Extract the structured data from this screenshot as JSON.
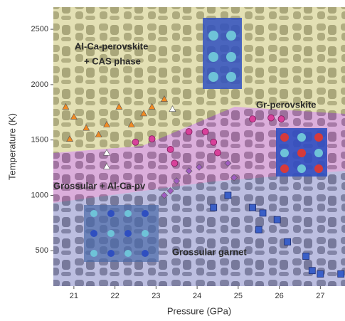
{
  "chart_data": {
    "type": "scatter",
    "x_label": "Pressure (GPa)",
    "y_label": "Temperature (K)",
    "xlim": [
      20.5,
      27.6
    ],
    "ylim": [
      180,
      2700
    ],
    "xticks": [
      21,
      22,
      23,
      24,
      25,
      26,
      27
    ],
    "yticks": [
      500,
      1000,
      1500,
      2000,
      2500
    ],
    "annotations": [
      "Al-Ca-perovskite",
      "+ CAS phase",
      "Gr-perovskite",
      "Grossular + Al-Ca-pv",
      "Grossular garnet"
    ],
    "series": [
      {
        "color": "#f08a24",
        "marker": "triangle",
        "x": [
          20.8,
          21.0,
          21.3,
          21.8,
          22.1,
          22.4,
          22.7,
          22.9,
          23.2,
          21.6,
          20.9
        ],
        "values": [
          1800,
          1710,
          1610,
          1640,
          1800,
          1640,
          1740,
          1800,
          1870,
          1550,
          1510
        ]
      },
      {
        "color": "#ffffff",
        "marker": "triangle",
        "x": [
          21.8,
          21.8,
          23.4
        ],
        "values": [
          1385,
          1260,
          1780
        ]
      },
      {
        "color": "#d8409a",
        "marker": "circle",
        "x": [
          22.5,
          22.9,
          23.35,
          23.8,
          24.2,
          24.4,
          24.5,
          23.45,
          25.35,
          25.8,
          26.05
        ],
        "values": [
          1480,
          1510,
          1415,
          1575,
          1575,
          1480,
          1385,
          1290,
          1690,
          1700,
          1690
        ]
      },
      {
        "color": "#a05cc0",
        "marker": "diamond",
        "x": [
          23.5,
          23.8,
          24.05,
          24.75,
          24.9,
          23.35,
          23.2
        ],
        "values": [
          1130,
          1220,
          1255,
          1290,
          1160,
          1040,
          1000
        ]
      },
      {
        "color": "#3a5fc8",
        "marker": "square",
        "x": [
          24.75,
          24.4,
          25.35,
          25.6,
          25.95,
          25.5,
          26.2,
          26.8,
          27.0,
          27.5,
          26.65
        ],
        "values": [
          1000,
          890,
          890,
          840,
          780,
          690,
          580,
          320,
          290,
          290,
          450
        ]
      }
    ]
  }
}
